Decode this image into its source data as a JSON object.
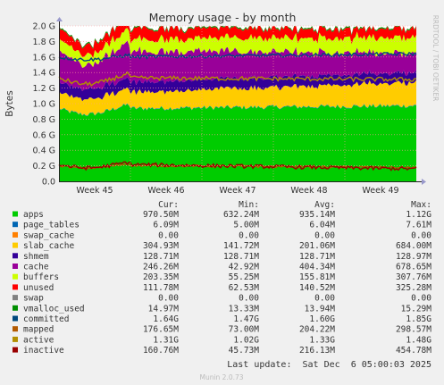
{
  "chart_data": {
    "type": "area",
    "title": "Memory usage - by month",
    "ylabel": "Bytes",
    "side_label": "RRDTOOL / TOBI OETIKER",
    "ylim": [
      0,
      2000000000
    ],
    "y_ticks": [
      "0.0",
      "0.2 G",
      "0.4 G",
      "0.6 G",
      "0.8 G",
      "1.0 G",
      "1.2 G",
      "1.4 G",
      "1.6 G",
      "1.8 G",
      "2.0 G"
    ],
    "x_ticks": [
      "Week 45",
      "Week 46",
      "Week 47",
      "Week 48",
      "Week 49"
    ],
    "grid": true,
    "legend_position": "bottom",
    "legend_headers": {
      "cur": "Cur:",
      "min": "Min:",
      "avg": "Avg:",
      "max": "Max:"
    },
    "series": [
      {
        "name": "apps",
        "color": "#00cc00",
        "kind": "stack",
        "cur": "970.50M",
        "min": "632.24M",
        "avg": "935.14M",
        "max": "1.12G"
      },
      {
        "name": "page_tables",
        "color": "#0066b3",
        "kind": "stack",
        "cur": "6.09M",
        "min": "5.00M",
        "avg": "6.04M",
        "max": "7.61M"
      },
      {
        "name": "swap_cache",
        "color": "#ff8000",
        "kind": "stack",
        "cur": "0.00",
        "min": "0.00",
        "avg": "0.00",
        "max": "0.00"
      },
      {
        "name": "slab_cache",
        "color": "#ffcc00",
        "kind": "stack",
        "cur": "304.93M",
        "min": "141.72M",
        "avg": "201.06M",
        "max": "684.00M"
      },
      {
        "name": "shmem",
        "color": "#330099",
        "kind": "stack",
        "cur": "128.71M",
        "min": "128.71M",
        "avg": "128.71M",
        "max": "128.97M"
      },
      {
        "name": "cache",
        "color": "#990099",
        "kind": "stack",
        "cur": "246.26M",
        "min": "42.92M",
        "avg": "404.34M",
        "max": "678.65M"
      },
      {
        "name": "buffers",
        "color": "#ccff00",
        "kind": "stack",
        "cur": "203.35M",
        "min": "55.25M",
        "avg": "155.81M",
        "max": "307.76M"
      },
      {
        "name": "unused",
        "color": "#ff0000",
        "kind": "stack",
        "cur": "111.78M",
        "min": "62.53M",
        "avg": "140.52M",
        "max": "325.28M"
      },
      {
        "name": "swap",
        "color": "#808080",
        "kind": "stack",
        "cur": "0.00",
        "min": "0.00",
        "avg": "0.00",
        "max": "0.00"
      },
      {
        "name": "vmalloc_used",
        "color": "#008f00",
        "kind": "stack",
        "cur": "14.97M",
        "min": "13.33M",
        "avg": "13.94M",
        "max": "15.29M"
      },
      {
        "name": "committed",
        "color": "#00487d",
        "kind": "line",
        "cur": "1.64G",
        "min": "1.47G",
        "avg": "1.60G",
        "max": "1.85G"
      },
      {
        "name": "mapped",
        "color": "#b35a00",
        "kind": "line",
        "cur": "176.65M",
        "min": "73.00M",
        "avg": "204.22M",
        "max": "298.57M"
      },
      {
        "name": "active",
        "color": "#b38f00",
        "kind": "line",
        "cur": "1.31G",
        "min": "1.02G",
        "avg": "1.33G",
        "max": "1.48G"
      },
      {
        "name": "inactive",
        "color": "#990000",
        "kind": "line",
        "cur": "160.76M",
        "min": "45.73M",
        "avg": "216.13M",
        "max": "454.78M"
      }
    ],
    "last_update": "Last update:  Sat Dec  6 05:00:03 2025",
    "footer": "Munin 2.0.73"
  }
}
